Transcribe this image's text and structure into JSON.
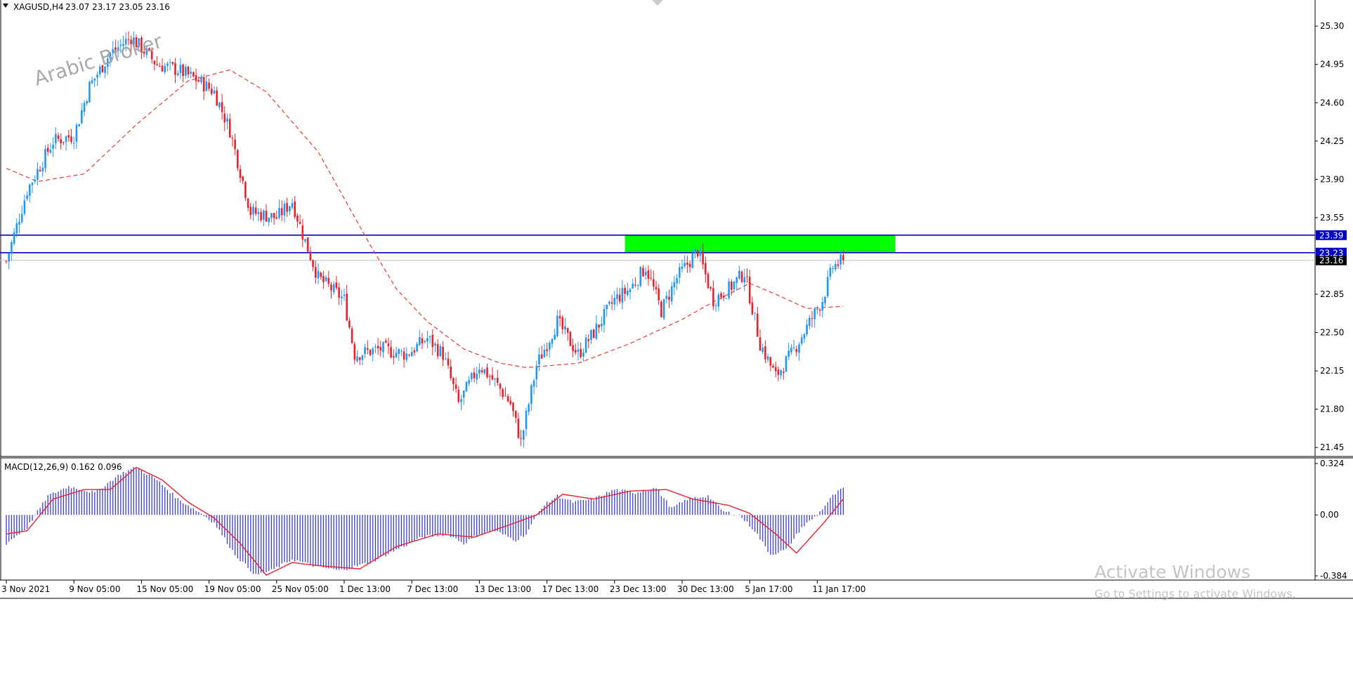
{
  "header": {
    "symbol": "XAGUSD,H4",
    "ohlc": "23.07 23.17 23.05 23.16",
    "dropdown_icon": "triangle-down-icon"
  },
  "logo_text": "Arabic Broker",
  "windows_watermark": {
    "title": "Activate Windows",
    "subtitle": "Go to Settings to activate Windows."
  },
  "colors": {
    "bull": "#2196f3",
    "bear": "#e8202a",
    "ma": "#e53935",
    "level_line": "#0000cc",
    "zone": "#00ff00",
    "macd_hist": "#3a3ad4",
    "signal": "#e8202a",
    "current_price_bg": "#000000"
  },
  "chart_data": [
    {
      "type": "candlestick",
      "title": "XAGUSD,H4",
      "ylim": [
        21.4,
        25.5
      ],
      "yticks": [
        "25.30",
        "24.95",
        "24.60",
        "24.25",
        "23.90",
        "23.55",
        "22.85",
        "22.50",
        "22.15",
        "21.80",
        "21.45"
      ],
      "ytick_values": [
        25.3,
        24.95,
        24.6,
        24.25,
        23.9,
        23.55,
        22.85,
        22.5,
        22.15,
        21.8,
        21.45
      ],
      "xticks": [
        "3 Nov 2021",
        "9 Nov 05:00",
        "15 Nov 05:00",
        "19 Nov 05:00",
        "25 Nov 05:00",
        "1 Dec 13:00",
        "7 Dec 13:00",
        "13 Dec 13:00",
        "17 Dec 13:00",
        "23 Dec 13:00",
        "30 Dec 13:00",
        "5 Jan 17:00",
        "11 Jan 17:00"
      ],
      "xtick_bar_index": [
        0,
        26,
        52,
        78,
        104,
        130,
        156,
        182,
        208,
        234,
        260,
        286,
        312
      ],
      "key_closes": [
        [
          0,
          23.15
        ],
        [
          8,
          23.8
        ],
        [
          18,
          24.25
        ],
        [
          26,
          24.3
        ],
        [
          32,
          24.75
        ],
        [
          40,
          25.05
        ],
        [
          48,
          25.2
        ],
        [
          58,
          24.95
        ],
        [
          66,
          24.9
        ],
        [
          74,
          24.8
        ],
        [
          80,
          24.7
        ],
        [
          86,
          24.35
        ],
        [
          94,
          23.6
        ],
        [
          104,
          23.55
        ],
        [
          110,
          23.7
        ],
        [
          114,
          23.4
        ],
        [
          120,
          23.0
        ],
        [
          130,
          22.8
        ],
        [
          134,
          22.3
        ],
        [
          144,
          22.35
        ],
        [
          154,
          22.3
        ],
        [
          162,
          22.45
        ],
        [
          168,
          22.3
        ],
        [
          174,
          21.85
        ],
        [
          182,
          22.2
        ],
        [
          188,
          22.05
        ],
        [
          194,
          21.85
        ],
        [
          198,
          21.5
        ],
        [
          204,
          22.2
        ],
        [
          212,
          22.6
        ],
        [
          220,
          22.3
        ],
        [
          226,
          22.5
        ],
        [
          234,
          22.8
        ],
        [
          240,
          22.9
        ],
        [
          246,
          23.1
        ],
        [
          252,
          22.7
        ],
        [
          258,
          23.0
        ],
        [
          266,
          23.25
        ],
        [
          272,
          22.8
        ],
        [
          278,
          22.9
        ],
        [
          284,
          23.05
        ],
        [
          290,
          22.4
        ],
        [
          296,
          22.1
        ],
        [
          302,
          22.3
        ],
        [
          308,
          22.55
        ],
        [
          314,
          22.8
        ],
        [
          318,
          23.1
        ],
        [
          322,
          23.16
        ]
      ],
      "moving_average": {
        "style": "dashed",
        "points": [
          [
            0,
            24.0
          ],
          [
            12,
            23.88
          ],
          [
            30,
            23.95
          ],
          [
            50,
            24.4
          ],
          [
            70,
            24.8
          ],
          [
            86,
            24.9
          ],
          [
            100,
            24.7
          ],
          [
            120,
            24.15
          ],
          [
            140,
            23.3
          ],
          [
            150,
            22.9
          ],
          [
            162,
            22.6
          ],
          [
            176,
            22.35
          ],
          [
            190,
            22.22
          ],
          [
            200,
            22.18
          ],
          [
            220,
            22.22
          ],
          [
            240,
            22.4
          ],
          [
            260,
            22.62
          ],
          [
            272,
            22.78
          ],
          [
            286,
            22.95
          ],
          [
            296,
            22.85
          ],
          [
            308,
            22.72
          ],
          [
            322,
            22.74
          ]
        ]
      },
      "levels": [
        {
          "label": "23.39",
          "value": 23.39
        },
        {
          "label": "23.23",
          "value": 23.23
        }
      ],
      "current_price": {
        "label": "23.16",
        "value": 23.16
      },
      "zone": {
        "from_bar": 238,
        "to_bar": 342,
        "low": 23.23,
        "high": 23.39
      }
    },
    {
      "type": "histogram",
      "title": "MACD(12,26,9) 0.162 0.096",
      "ylim": [
        -0.384,
        0.324
      ],
      "yticks": [
        "0.324",
        "0.00",
        "-0.384"
      ],
      "ytick_values": [
        0.324,
        0.0,
        -0.384
      ],
      "histogram_key": [
        [
          0,
          -0.18
        ],
        [
          8,
          -0.08
        ],
        [
          16,
          0.12
        ],
        [
          24,
          0.18
        ],
        [
          34,
          0.14
        ],
        [
          44,
          0.26
        ],
        [
          50,
          0.3
        ],
        [
          58,
          0.22
        ],
        [
          66,
          0.1
        ],
        [
          74,
          0.02
        ],
        [
          80,
          -0.05
        ],
        [
          88,
          -0.25
        ],
        [
          96,
          -0.38
        ],
        [
          102,
          -0.35
        ],
        [
          110,
          -0.28
        ],
        [
          118,
          -0.32
        ],
        [
          128,
          -0.35
        ],
        [
          140,
          -0.3
        ],
        [
          150,
          -0.22
        ],
        [
          160,
          -0.14
        ],
        [
          170,
          -0.12
        ],
        [
          176,
          -0.18
        ],
        [
          182,
          -0.12
        ],
        [
          188,
          -0.1
        ],
        [
          196,
          -0.16
        ],
        [
          200,
          -0.12
        ],
        [
          206,
          0.05
        ],
        [
          212,
          0.12
        ],
        [
          218,
          0.08
        ],
        [
          226,
          0.1
        ],
        [
          234,
          0.16
        ],
        [
          242,
          0.14
        ],
        [
          250,
          0.17
        ],
        [
          256,
          0.04
        ],
        [
          262,
          0.1
        ],
        [
          270,
          0.12
        ],
        [
          276,
          0.02
        ],
        [
          282,
          0.0
        ],
        [
          288,
          -0.1
        ],
        [
          294,
          -0.25
        ],
        [
          300,
          -0.22
        ],
        [
          306,
          -0.08
        ],
        [
          312,
          0.0
        ],
        [
          318,
          0.12
        ],
        [
          322,
          0.17
        ]
      ],
      "signal_key": [
        [
          0,
          -0.12
        ],
        [
          8,
          -0.1
        ],
        [
          18,
          0.1
        ],
        [
          30,
          0.16
        ],
        [
          40,
          0.16
        ],
        [
          50,
          0.3
        ],
        [
          60,
          0.22
        ],
        [
          70,
          0.08
        ],
        [
          80,
          -0.02
        ],
        [
          90,
          -0.18
        ],
        [
          100,
          -0.38
        ],
        [
          110,
          -0.3
        ],
        [
          120,
          -0.32
        ],
        [
          136,
          -0.34
        ],
        [
          150,
          -0.2
        ],
        [
          166,
          -0.12
        ],
        [
          180,
          -0.14
        ],
        [
          194,
          -0.06
        ],
        [
          204,
          0.0
        ],
        [
          214,
          0.13
        ],
        [
          226,
          0.1
        ],
        [
          240,
          0.15
        ],
        [
          254,
          0.16
        ],
        [
          264,
          0.1
        ],
        [
          278,
          0.06
        ],
        [
          286,
          0.01
        ],
        [
          296,
          -0.12
        ],
        [
          304,
          -0.24
        ],
        [
          314,
          -0.06
        ],
        [
          322,
          0.1
        ]
      ]
    }
  ]
}
